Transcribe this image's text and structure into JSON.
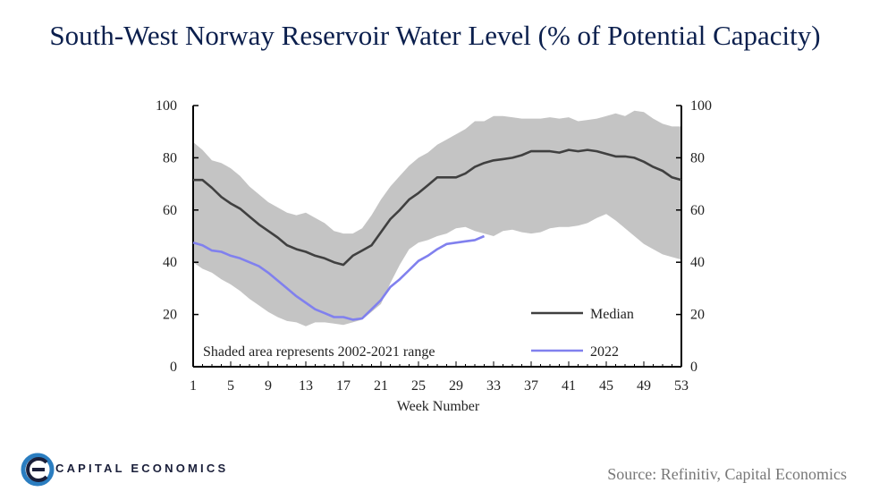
{
  "chart_data": {
    "type": "line",
    "title": "South-West Norway Reservoir Water Level (% of Potential Capacity)",
    "xlabel": "Week Number",
    "ylabel": "",
    "xlim": [
      1,
      53
    ],
    "ylim": [
      0,
      100
    ],
    "x_ticks": [
      1,
      5,
      9,
      13,
      17,
      21,
      25,
      29,
      33,
      37,
      41,
      45,
      49,
      53
    ],
    "y_ticks": [
      0,
      20,
      40,
      60,
      80,
      100
    ],
    "x": [
      1,
      2,
      3,
      4,
      5,
      6,
      7,
      8,
      9,
      10,
      11,
      12,
      13,
      14,
      15,
      16,
      17,
      18,
      19,
      20,
      21,
      22,
      23,
      24,
      25,
      26,
      27,
      28,
      29,
      30,
      31,
      32,
      33,
      34,
      35,
      36,
      37,
      38,
      39,
      40,
      41,
      42,
      43,
      44,
      45,
      46,
      47,
      48,
      49,
      50,
      51,
      52,
      53
    ],
    "band": {
      "upper": [
        86,
        83,
        79,
        78,
        76,
        73,
        69,
        66,
        63,
        61,
        59,
        58,
        59,
        57,
        55,
        52,
        51,
        51,
        53,
        58,
        64,
        69,
        73,
        77,
        80,
        82,
        85,
        87,
        89,
        91,
        94,
        94,
        96,
        96,
        95.5,
        95,
        95,
        95,
        95.5,
        95,
        95.5,
        94,
        94.5,
        95,
        96,
        97,
        96,
        98,
        97.5,
        95,
        93,
        92,
        92
      ],
      "lower": [
        40,
        37.5,
        36,
        33.5,
        31.5,
        29,
        26,
        23.5,
        21,
        19,
        17.5,
        17,
        15.5,
        17,
        17,
        16.5,
        16,
        17,
        18,
        21,
        24,
        32,
        39,
        45,
        47.5,
        48.5,
        50,
        51,
        53,
        53.5,
        52,
        51,
        50,
        52,
        52.5,
        51.5,
        51,
        51.5,
        53,
        53.5,
        53.5,
        54,
        55,
        57,
        58.5,
        56,
        53,
        50,
        47,
        45,
        43,
        42,
        41
      ]
    },
    "series": [
      {
        "name": "Median",
        "color": "#404040",
        "values": [
          71.5,
          71.5,
          68.5,
          65,
          62.5,
          60.5,
          57.5,
          54.5,
          52,
          49.5,
          46.5,
          45,
          44,
          42.5,
          41.5,
          40,
          39,
          42.5,
          44.5,
          46.5,
          51.5,
          56.5,
          60,
          64,
          66.5,
          69.5,
          72.5,
          72.5,
          72.5,
          74,
          76.5,
          78,
          79,
          79.5,
          80,
          81,
          82.5,
          82.5,
          82.5,
          82,
          83,
          82.5,
          83,
          82.5,
          81.5,
          80.5,
          80.5,
          80,
          78.5,
          76.5,
          75,
          72.5,
          71.5
        ]
      },
      {
        "name": "2022",
        "color": "#8080ee",
        "values": [
          47.5,
          46.5,
          44.5,
          44,
          42.5,
          41.5,
          40,
          38.5,
          36,
          33,
          30,
          27,
          24.5,
          22,
          20.5,
          19,
          19,
          18,
          18.5,
          22,
          25.5,
          30.5,
          33.5,
          37,
          40.5,
          42.5,
          45,
          47,
          47.5,
          48,
          48.5,
          50,
          null,
          null,
          null,
          null,
          null,
          null,
          null,
          null,
          null,
          null,
          null,
          null,
          null,
          null,
          null,
          null,
          null,
          null,
          null,
          null,
          null
        ]
      }
    ],
    "band_color": "#c4c4c4",
    "band_label": "Shaded area represents 2002-2021 range",
    "legend": "bottom-right",
    "grid": false
  },
  "footer": {
    "logo_text": "CAPITAL ECONOMICS",
    "source": "Source: Refinitiv, Capital Economics"
  },
  "colors": {
    "title": "#0b1f4d",
    "logo_blue": "#2a7dc0",
    "logo_navy": "#1a1f3a"
  }
}
